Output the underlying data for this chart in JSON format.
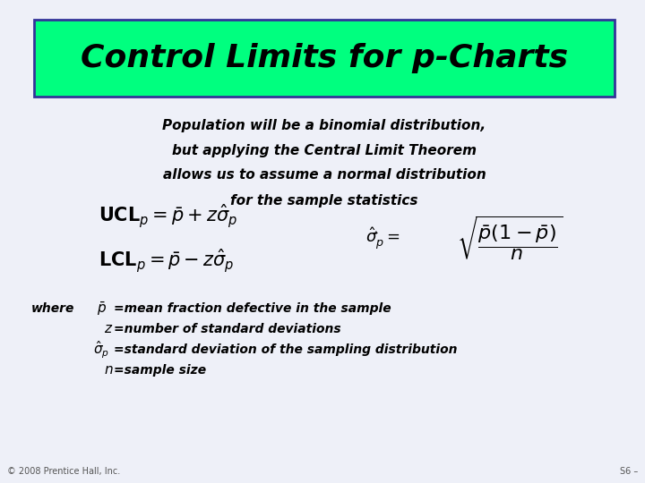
{
  "title": "Control Limits for p-Charts",
  "title_bg_color": "#00FF7F",
  "title_border_color": "#333399",
  "bg_color": "#EEF0F8",
  "text_color": "#000000",
  "footer_left": "© 2008 Prentice Hall, Inc.",
  "footer_right": "S6 –",
  "body_line1": "Population will be a binomial distribution,",
  "body_line2": "but applying the Central Limit Theorem",
  "body_line3": "allows us to assume a normal distribution",
  "body_line4": "for the sample statistics",
  "ucl_formula": "$\\mathbf{UCL}_p = \\bar{p} + z\\hat{\\sigma}_p$",
  "lcl_formula": "$\\mathbf{LCL}_p = \\bar{p} - z\\hat{\\sigma}_p$",
  "sigma_lhs": "$\\hat{\\sigma}_p^{\\hat{}} =$",
  "sigma_rhs": "$\\sqrt{\\dfrac{\\bar{p}(1-\\bar{p})}{n}}$"
}
